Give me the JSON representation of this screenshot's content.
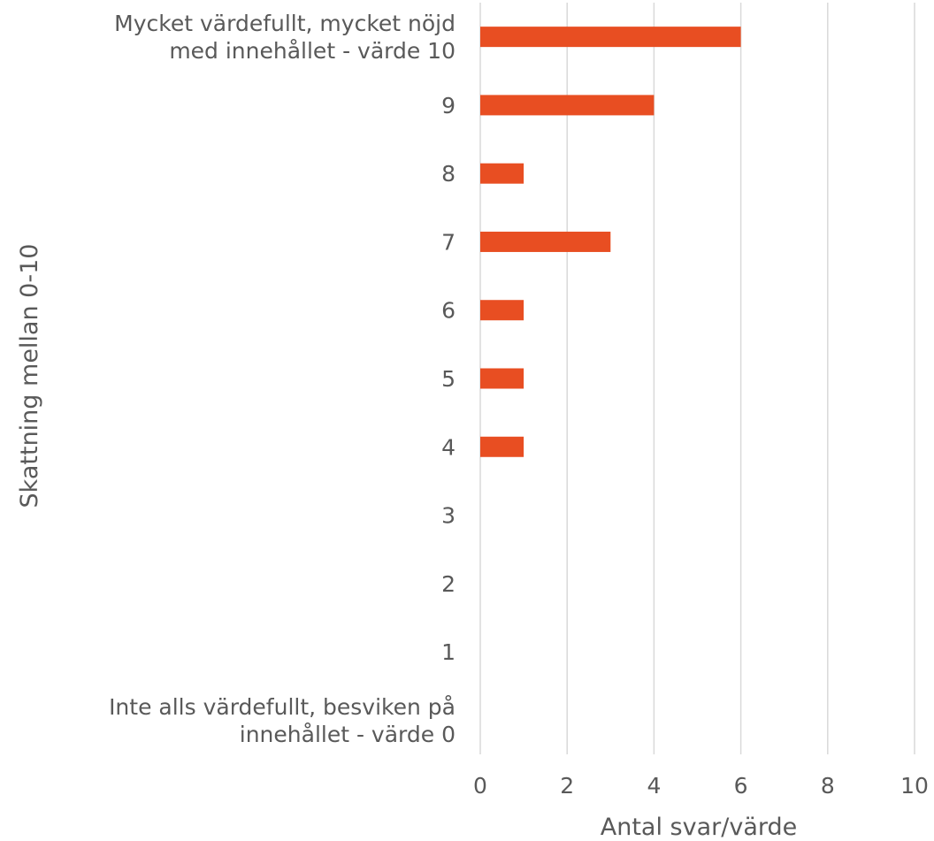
{
  "chart_data": {
    "type": "bar",
    "orientation": "horizontal",
    "categories": [
      [
        "Inte alls värdefullt, besviken på",
        "innehållet - värde 0"
      ],
      [
        "1"
      ],
      [
        "2"
      ],
      [
        "3"
      ],
      [
        "4"
      ],
      [
        "5"
      ],
      [
        "6"
      ],
      [
        "7"
      ],
      [
        "8"
      ],
      [
        "9"
      ],
      [
        "Mycket värdefullt, mycket nöjd",
        "med innehållet - värde 10"
      ]
    ],
    "values": [
      0,
      0,
      0,
      0,
      1,
      1,
      1,
      3,
      1,
      4,
      6
    ],
    "xlabel": "Antal svar/värde",
    "ylabel": "Skattning mellan 0-10",
    "xlim": [
      0,
      10
    ],
    "xticks": [
      0,
      2,
      4,
      6,
      8,
      10
    ],
    "grid": true,
    "bar_color": "#E84E22",
    "grid_color": "#D9D9D9",
    "text_color": "#595959"
  }
}
